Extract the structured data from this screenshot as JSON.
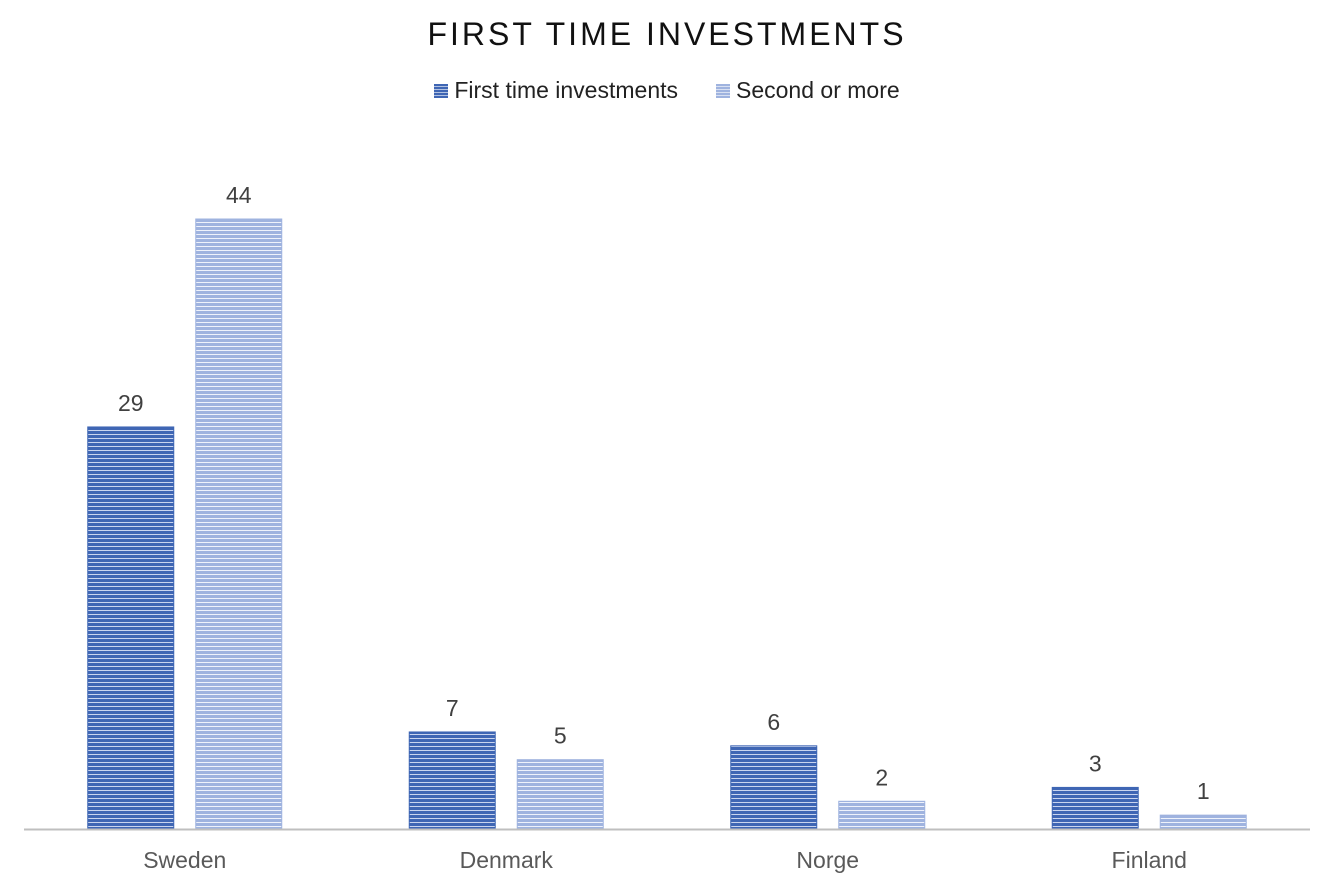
{
  "chart_data": {
    "type": "bar",
    "title": "FIRST TIME INVESTMENTS",
    "categories": [
      "Sweden",
      "Denmark",
      "Norge",
      "Finland"
    ],
    "series": [
      {
        "name": "First time investments",
        "values": [
          29,
          7,
          6,
          3
        ],
        "color": "#3f66b4"
      },
      {
        "name": "Second or more",
        "values": [
          44,
          5,
          2,
          1
        ],
        "color": "#9fb3df"
      }
    ],
    "xlabel": "",
    "ylabel": "",
    "ylim": [
      0,
      44
    ],
    "grid": false,
    "legend": "top-center",
    "data_labels": true
  }
}
